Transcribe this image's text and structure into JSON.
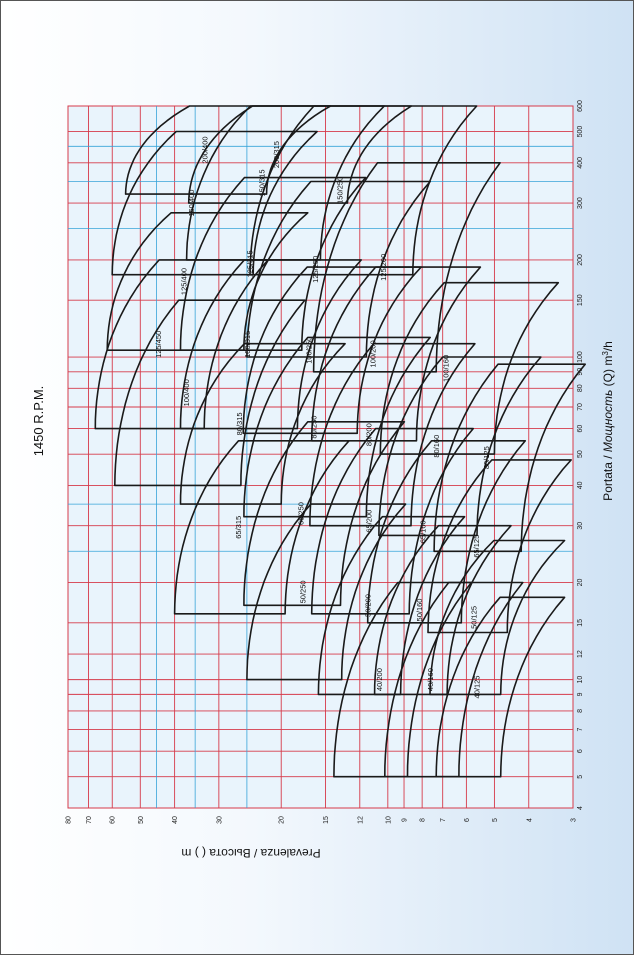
{
  "colors": {
    "grid_red": "#d63a4a",
    "grid_blue": "#37a3d8",
    "curve": "#1a1a1a",
    "plot_bg": "#e9f4fc"
  },
  "chart_data": {
    "type": "line",
    "title": "1450 R.P.M.",
    "xlabel_prefix": "Portata / ",
    "xlabel_italic": "Мощность",
    "xlabel_suffix": " (Q) m",
    "xlabel_sup": "3",
    "xlabel_end": "/h",
    "ylabel": "Prevalenza / Высота  (  ) m",
    "xscale": "log",
    "yscale": "log",
    "xlim": [
      4,
      600
    ],
    "ylim": [
      3,
      80
    ],
    "x_ticks": [
      "4",
      "5",
      "6",
      "7",
      "8",
      "9",
      "10",
      "12",
      "15",
      "20",
      "30",
      "40",
      "50",
      "60",
      "70",
      "80",
      "90",
      "100",
      "150",
      "200",
      "300",
      "400",
      "500",
      "600"
    ],
    "y_ticks": [
      "3",
      "4",
      "5",
      "6",
      "7",
      "8",
      "9",
      "10",
      "12",
      "15",
      "20",
      "30",
      "40",
      "50",
      "60",
      "70",
      "80"
    ],
    "grid": true,
    "orientation": "rotated 90° counter-clockwise",
    "pump_models": [
      {
        "label": "40/125",
        "q_min": 5,
        "q_max": 18,
        "h_min": 4.8,
        "h_max": 7.3
      },
      {
        "label": "40/160",
        "q_min": 5,
        "q_max": 20,
        "h_min": 6.3,
        "h_max": 10.2
      },
      {
        "label": "40/200",
        "q_min": 5,
        "q_max": 20,
        "h_min": 8.8,
        "h_max": 14.2
      },
      {
        "label": "50/125",
        "q_min": 9,
        "q_max": 27,
        "h_min": 4.8,
        "h_max": 7.6
      },
      {
        "label": "50/160",
        "q_min": 9,
        "q_max": 30,
        "h_min": 6.8,
        "h_max": 10.9
      },
      {
        "label": "50/200",
        "q_min": 9,
        "q_max": 32,
        "h_min": 9.2,
        "h_max": 15.7
      },
      {
        "label": "50/250",
        "q_min": 10,
        "q_max": 35,
        "h_min": 13.5,
        "h_max": 25
      },
      {
        "label": "65/125",
        "q_min": 14,
        "q_max": 48,
        "h_min": 4.6,
        "h_max": 7.7
      },
      {
        "label": "65/160",
        "q_min": 15,
        "q_max": 55,
        "h_min": 6.2,
        "h_max": 11.4
      },
      {
        "label": "65/200",
        "q_min": 16,
        "q_max": 60,
        "h_min": 8.7,
        "h_max": 16.4
      },
      {
        "label": "65/250",
        "q_min": 17,
        "q_max": 63,
        "h_min": 13.6,
        "h_max": 25.5
      },
      {
        "label": "65/315",
        "q_min": 16,
        "q_max": 55,
        "h_min": 19.5,
        "h_max": 40
      },
      {
        "label": "80/125",
        "q_min": 25,
        "q_max": 95,
        "h_min": 4.2,
        "h_max": 7.4
      },
      {
        "label": "80/160",
        "q_min": 28,
        "q_max": 100,
        "h_min": 5.6,
        "h_max": 10.6
      },
      {
        "label": "80/200",
        "q_min": 30,
        "q_max": 110,
        "h_min": 8.6,
        "h_max": 16.6
      },
      {
        "label": "80/250",
        "q_min": 32,
        "q_max": 115,
        "h_min": 11.5,
        "h_max": 25.5
      },
      {
        "label": "80/315",
        "q_min": 35,
        "q_max": 110,
        "h_min": 20,
        "h_max": 38.5
      },
      {
        "label": "100/160",
        "q_min": 50,
        "q_max": 170,
        "h_min": 5,
        "h_max": 10.5
      },
      {
        "label": "100/200",
        "q_min": 55,
        "q_max": 190,
        "h_min": 8.3,
        "h_max": 16.4
      },
      {
        "label": "100/250",
        "q_min": 58,
        "q_max": 190,
        "h_min": 12.2,
        "h_max": 25.6
      },
      {
        "label": "100/315",
        "q_min": 60,
        "q_max": 200,
        "h_min": 18,
        "h_max": 38.5
      },
      {
        "label": "100/400",
        "q_min": 40,
        "q_max": 150,
        "h_min": 26,
        "h_max": 59
      },
      {
        "label": "125/200",
        "q_min": 90,
        "q_max": 400,
        "h_min": 7.3,
        "h_max": 16.2
      },
      {
        "label": "125/250",
        "q_min": 100,
        "q_max": 350,
        "h_min": 11.5,
        "h_max": 25
      },
      {
        "label": "125/315",
        "q_min": 105,
        "q_max": 360,
        "h_min": 17.5,
        "h_max": 38.5
      },
      {
        "label": "125/400",
        "q_min": 105,
        "q_max": 280,
        "h_min": 25.5,
        "h_max": 62
      },
      {
        "label": "125/450",
        "q_min": 60,
        "q_max": 200,
        "h_min": 33,
        "h_max": 67
      },
      {
        "label": "150/250",
        "q_min": 180,
        "q_max": 600,
        "h_min": 8.5,
        "h_max": 24.5
      },
      {
        "label": "150/315",
        "q_min": 200,
        "q_max": 600,
        "h_min": 15.5,
        "h_max": 37
      },
      {
        "label": "150/400",
        "q_min": 180,
        "q_max": 500,
        "h_min": 24,
        "h_max": 60
      },
      {
        "label": "200/315",
        "q_min": 300,
        "q_max": 600,
        "h_min": 13,
        "h_max": 36.5
      },
      {
        "label": "200/400",
        "q_min": 320,
        "q_max": 600,
        "h_min": 22,
        "h_max": 55
      }
    ]
  }
}
